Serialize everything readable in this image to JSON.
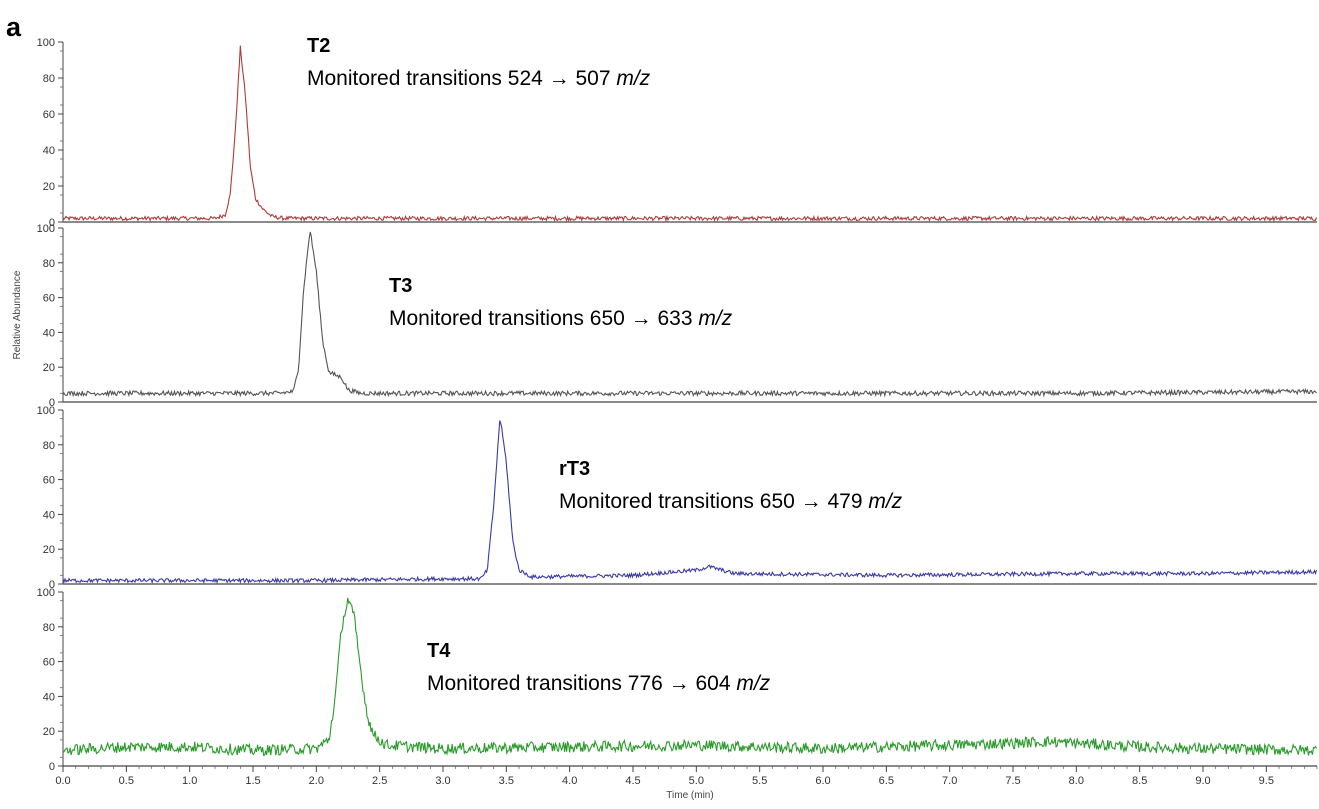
{
  "panel_label": "a",
  "chart_data": {
    "type": "line",
    "title": "",
    "xlabel": "Time (min)",
    "ylabel": "Relative Abundance",
    "xlim": [
      0.0,
      9.9
    ],
    "ylim": [
      0,
      100
    ],
    "x_ticks": [
      "0.0",
      "0.5",
      "1.0",
      "1.5",
      "2.0",
      "2.5",
      "3.0",
      "3.5",
      "4.0",
      "4.5",
      "5.0",
      "5.5",
      "6.0",
      "6.5",
      "7.0",
      "7.5",
      "8.0",
      "8.5",
      "9.0",
      "9.5"
    ],
    "y_ticks": [
      "0",
      "20",
      "40",
      "60",
      "80",
      "100"
    ],
    "grid": false,
    "series": [
      {
        "name": "T2",
        "color": "#b03a3a",
        "annotation": {
          "title": "T2",
          "text": "Monitored transitions 524 → 507 ",
          "unit": "m/z"
        },
        "peak": {
          "x": 1.4,
          "y": 97
        },
        "baseline": 2,
        "points": [
          [
            0.0,
            2
          ],
          [
            0.5,
            2
          ],
          [
            1.0,
            2
          ],
          [
            1.2,
            2
          ],
          [
            1.28,
            4
          ],
          [
            1.32,
            15
          ],
          [
            1.36,
            50
          ],
          [
            1.4,
            97
          ],
          [
            1.44,
            70
          ],
          [
            1.48,
            30
          ],
          [
            1.52,
            13
          ],
          [
            1.58,
            7
          ],
          [
            1.65,
            3
          ],
          [
            1.75,
            2
          ],
          [
            2.5,
            2
          ],
          [
            5.0,
            2
          ],
          [
            7.5,
            2
          ],
          [
            9.9,
            2
          ]
        ]
      },
      {
        "name": "T3",
        "color": "#555555",
        "annotation": {
          "title": "T3",
          "text": "Monitored transitions 650 → 633 ",
          "unit": "m/z"
        },
        "peak": {
          "x": 1.95,
          "y": 99
        },
        "baseline": 5,
        "points": [
          [
            0.0,
            5
          ],
          [
            1.0,
            5
          ],
          [
            1.7,
            5
          ],
          [
            1.82,
            6
          ],
          [
            1.86,
            20
          ],
          [
            1.9,
            65
          ],
          [
            1.95,
            99
          ],
          [
            2.0,
            75
          ],
          [
            2.05,
            35
          ],
          [
            2.1,
            17
          ],
          [
            2.2,
            14
          ],
          [
            2.25,
            7
          ],
          [
            2.35,
            5
          ],
          [
            5.0,
            5
          ],
          [
            8.0,
            5
          ],
          [
            9.9,
            6
          ]
        ]
      },
      {
        "name": "rT3",
        "color": "#3a3aa8",
        "annotation": {
          "title": "rT3",
          "text": "Monitored transitions 650 → 479 ",
          "unit": "m/z"
        },
        "peak": {
          "x": 3.45,
          "y": 96
        },
        "baseline": 2,
        "points": [
          [
            0.0,
            2
          ],
          [
            1.0,
            2
          ],
          [
            2.0,
            2
          ],
          [
            3.0,
            3
          ],
          [
            3.3,
            3
          ],
          [
            3.35,
            8
          ],
          [
            3.4,
            45
          ],
          [
            3.45,
            96
          ],
          [
            3.5,
            70
          ],
          [
            3.55,
            25
          ],
          [
            3.6,
            8
          ],
          [
            3.7,
            4
          ],
          [
            4.5,
            5
          ],
          [
            5.0,
            8
          ],
          [
            5.1,
            10
          ],
          [
            5.3,
            6
          ],
          [
            6.5,
            5
          ],
          [
            8.0,
            6
          ],
          [
            9.0,
            6
          ],
          [
            9.9,
            7
          ]
        ]
      },
      {
        "name": "T4",
        "color": "#2a9a2a",
        "annotation": {
          "title": "T4",
          "text": "Monitored transitions 776 → 604 ",
          "unit": "m/z"
        },
        "peak": {
          "x": 2.25,
          "y": 96
        },
        "baseline": 10,
        "points": [
          [
            0.0,
            9
          ],
          [
            0.5,
            11
          ],
          [
            1.0,
            11
          ],
          [
            1.5,
            9
          ],
          [
            2.0,
            10
          ],
          [
            2.1,
            15
          ],
          [
            2.15,
            40
          ],
          [
            2.2,
            80
          ],
          [
            2.25,
            96
          ],
          [
            2.3,
            85
          ],
          [
            2.35,
            55
          ],
          [
            2.4,
            30
          ],
          [
            2.45,
            18
          ],
          [
            2.55,
            12
          ],
          [
            3.0,
            10
          ],
          [
            4.0,
            11
          ],
          [
            5.0,
            12
          ],
          [
            6.0,
            10
          ],
          [
            7.0,
            12
          ],
          [
            7.8,
            14
          ],
          [
            8.5,
            11
          ],
          [
            9.0,
            10
          ],
          [
            9.9,
            9
          ]
        ]
      }
    ]
  }
}
